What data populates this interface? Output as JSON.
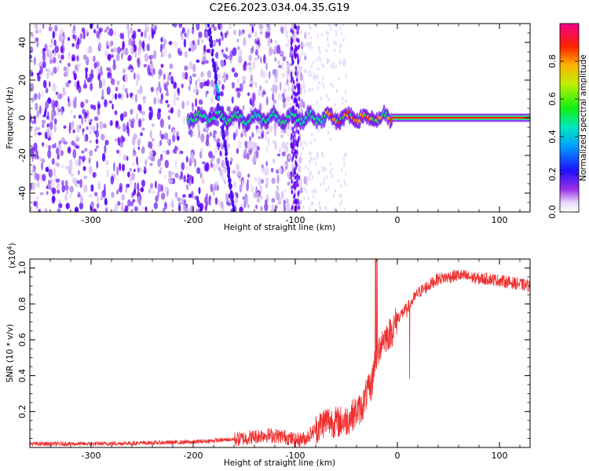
{
  "title": "C2E6.2023.034.04.35.G19",
  "colors": {
    "snr_line": "#ee3030",
    "spec_low": "#dcc8f4",
    "spec_mid": "#6a00f0",
    "spec_track": "#00e87a"
  },
  "chart_data": [
    {
      "type": "heatmap",
      "xlabel": "Height of straight line (km)",
      "ylabel": "Frequency (Hz)",
      "xlim": [
        -360,
        130
      ],
      "ylim": [
        -50,
        50
      ],
      "x_ticks": [
        -300,
        -200,
        -100,
        0,
        100
      ],
      "y_ticks": [
        -40,
        -20,
        0,
        20,
        40
      ],
      "colorbar": {
        "label": "Normalized spectral amplitude",
        "range": [
          0,
          1
        ],
        "ticks": [
          "0.0",
          "0.2",
          "0.4",
          "0.6",
          "0.8"
        ],
        "colormap": "rainbow"
      },
      "features": [
        {
          "kind": "diagonal-stripe",
          "x_start": -185,
          "x_end": -160,
          "y_start": 50,
          "y_end": -50
        },
        {
          "kind": "vertical-band",
          "x": -100
        },
        {
          "kind": "noise-region",
          "x_range": [
            -360,
            -90
          ]
        },
        {
          "kind": "signal-track",
          "x_range": [
            -205,
            130
          ],
          "y_center": 0
        }
      ]
    },
    {
      "type": "line",
      "xlabel": "Height of straight line (km)",
      "ylabel": "SNR (10 * v/v)",
      "y_scale_label": "(x10",
      "y_scale_exponent": "4",
      "y_scale_suffix": ")",
      "xlim": [
        -360,
        130
      ],
      "ylim": [
        0,
        1.05
      ],
      "x_ticks": [
        -300,
        -200,
        -100,
        0,
        100
      ],
      "y_ticks": [
        0.2,
        0.4,
        0.6,
        0.8,
        1.0
      ],
      "y_tick_labels": [
        "0.2",
        "0.4",
        "0.6",
        "0.8",
        "1.0"
      ],
      "series": [
        {
          "x": [
            -360,
            -300,
            -250,
            -200,
            -150,
            -130,
            -110,
            -100,
            -90,
            -80,
            -70,
            -60,
            -50,
            -40,
            -35,
            -30,
            -25,
            -22,
            -20,
            -18,
            -15,
            -10,
            -5,
            0,
            5,
            10,
            15,
            20,
            25,
            30,
            35,
            40,
            50,
            60,
            70,
            80,
            90,
            100,
            110,
            120,
            130
          ],
          "y": [
            0.02,
            0.02,
            0.025,
            0.03,
            0.05,
            0.07,
            0.06,
            0.04,
            0.05,
            0.1,
            0.15,
            0.14,
            0.15,
            0.2,
            0.22,
            0.3,
            0.35,
            0.5,
            0.45,
            0.55,
            0.6,
            0.62,
            0.65,
            0.72,
            0.75,
            0.78,
            0.82,
            0.86,
            0.88,
            0.9,
            0.92,
            0.94,
            0.95,
            0.96,
            0.95,
            0.94,
            0.94,
            0.93,
            0.92,
            0.91,
            0.9
          ]
        }
      ]
    }
  ]
}
